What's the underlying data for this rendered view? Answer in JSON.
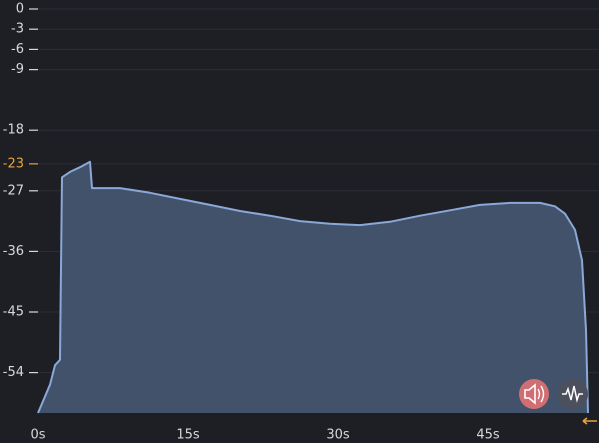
{
  "chart_data": {
    "type": "area",
    "x": [
      0,
      1.2,
      1.7,
      2.2,
      2.4,
      3.2,
      4.2,
      5.2,
      5.4,
      8.2,
      11.2,
      14.2,
      17.2,
      20.2,
      23.2,
      26.2,
      29.2,
      32.2,
      35.2,
      38.2,
      41.2,
      44.2,
      47.2,
      50.2,
      51.7,
      52.7,
      53.7,
      54.4,
      54.8,
      55
    ],
    "series": [
      {
        "color": "#8aa8d8",
        "fill": "#42526b",
        "values": [
          -60,
          -55.8,
          -52.9,
          -52.1,
          -25.0,
          -24.2,
          -23.5,
          -22.7,
          -26.6,
          -26.6,
          -27.3,
          -28.2,
          -29.1,
          -30.0,
          -30.7,
          -31.5,
          -31.9,
          -32.1,
          -31.6,
          -30.7,
          -29.9,
          -29.1,
          -28.8,
          -28.8,
          -29.3,
          -30.4,
          -32.8,
          -37.3,
          -47.7,
          -60
        ]
      }
    ],
    "xlim": [
      0,
      55
    ],
    "xticks": [
      {
        "value": 0,
        "label": "0s"
      },
      {
        "value": 15,
        "label": "15s"
      },
      {
        "value": 30,
        "label": "30s"
      },
      {
        "value": 45,
        "label": "45s"
      }
    ],
    "ylim": [
      -60,
      0
    ],
    "yticks": [
      0,
      -3,
      -6,
      -9,
      -18,
      -23,
      -27,
      -36,
      -45,
      -54
    ],
    "target": -23,
    "target_color": "#e8a33a",
    "grid": true
  }
}
